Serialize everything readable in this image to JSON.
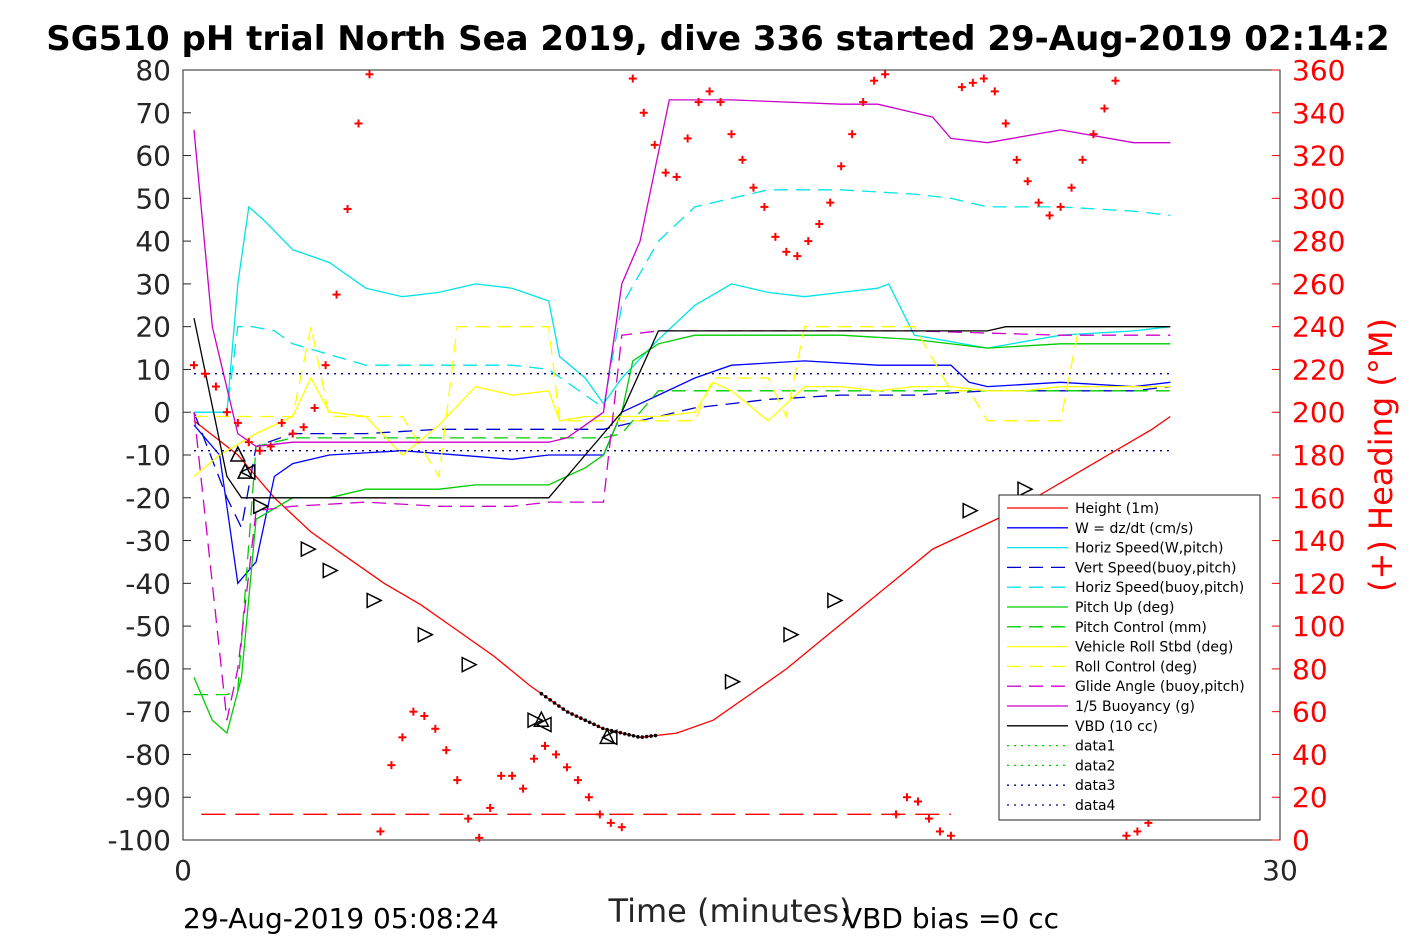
{
  "chart_data": {
    "type": "line",
    "title": "SG510 pH trial North Sea 2019, dive 336 started 29-Aug-2019 02:14:2",
    "xlabel": "Time (minutes)",
    "ylabel": "",
    "ylabel_right": "(+) Heading (°M)",
    "xlim": [
      0,
      30
    ],
    "ylim": [
      -100,
      80
    ],
    "ylim_right": [
      0,
      360
    ],
    "x_ticks": [
      "0",
      "30"
    ],
    "y_ticks": [
      "80",
      "70",
      "60",
      "50",
      "40",
      "30",
      "20",
      "10",
      "0",
      "-10",
      "-20",
      "-30",
      "-40",
      "-50",
      "-60",
      "-70",
      "-80",
      "-90",
      "-100"
    ],
    "y_ticks_right": [
      "360",
      "340",
      "320",
      "300",
      "280",
      "260",
      "240",
      "220",
      "200",
      "180",
      "160",
      "140",
      "120",
      "100",
      "80",
      "60",
      "40",
      "20",
      "0"
    ],
    "footer_left": "29-Aug-2019 05:08:24",
    "footer_right": "VBD bias =0 cc",
    "legend_position": "lower-right",
    "series": [
      {
        "name": "Height (1m)",
        "color": "#ff0000",
        "style": "solid",
        "axis": "left",
        "x": [
          0.3,
          1.5,
          2.5,
          3.5,
          4.5,
          5.5,
          6.5,
          7.5,
          8.5,
          9.5,
          10.5,
          11.5,
          12.5,
          13.5,
          14.5,
          15.5,
          16.5,
          17.5,
          18.5,
          19.5,
          20.5,
          21.5,
          22.5,
          23.5,
          24.5,
          25.5,
          26.5,
          27.0
        ],
        "y": [
          -2,
          -10,
          -20,
          -28,
          -34,
          -40,
          -45,
          -51,
          -57,
          -64,
          -70,
          -74,
          -76,
          -75,
          -72,
          -66,
          -60,
          -53,
          -46,
          -39,
          -32,
          -28,
          -24,
          -19,
          -14,
          -9,
          -4,
          -1
        ]
      },
      {
        "name": "W = dz/dt (cm/s)",
        "color": "#0000ff",
        "style": "solid",
        "axis": "left",
        "x": [
          0.3,
          1.0,
          1.5,
          2.0,
          2.5,
          3.0,
          4.0,
          6.0,
          9.0,
          10.0,
          11.5,
          12.0,
          13.0,
          14.0,
          15.0,
          17.0,
          19.0,
          21.0,
          21.5,
          22.0,
          24.0,
          26.0,
          27.0
        ],
        "y": [
          -3,
          -10,
          -40,
          -35,
          -15,
          -12,
          -10,
          -9,
          -11,
          -10,
          -10,
          0,
          4,
          8,
          11,
          12,
          11,
          11,
          7,
          6,
          7,
          6,
          7
        ]
      },
      {
        "name": "Horiz Speed(W,pitch)",
        "color": "#00e5e5",
        "style": "solid",
        "axis": "left",
        "x": [
          0.3,
          1.2,
          1.5,
          1.8,
          2.2,
          3.0,
          4.0,
          5.0,
          6.0,
          7.0,
          8.0,
          9.0,
          10.0,
          10.3,
          11.0,
          11.5,
          12.0,
          13.0,
          14.0,
          15.0,
          16.0,
          17.0,
          18.0,
          19.0,
          19.3,
          20.0,
          22.0,
          24.0,
          26.0,
          27.0
        ],
        "y": [
          0,
          0,
          30,
          48,
          45,
          38,
          35,
          29,
          27,
          28,
          30,
          29,
          26,
          13,
          8,
          2,
          8,
          17,
          25,
          30,
          28,
          27,
          28,
          29,
          30,
          18,
          15,
          18,
          19,
          20
        ]
      },
      {
        "name": "Vert Speed(buoy,pitch)",
        "color": "#0000cc",
        "style": "dashed",
        "axis": "left",
        "x": [
          0.3,
          1.2,
          1.6,
          2.0,
          3.0,
          5.0,
          7.0,
          9.0,
          10.0,
          11.5,
          12.0,
          13.0,
          14.0,
          16.0,
          18.0,
          20.0,
          22.0,
          24.0,
          26.0,
          27.0
        ],
        "y": [
          0,
          -20,
          -27,
          -8,
          -5,
          -5,
          -4,
          -4,
          -4,
          -4,
          -3,
          -1,
          1,
          3,
          4,
          4,
          5,
          5,
          5,
          6
        ]
      },
      {
        "name": "Horiz Speed(buoy,pitch)",
        "color": "#00e5e5",
        "style": "dashed",
        "axis": "left",
        "x": [
          0.3,
          1.2,
          1.5,
          1.9,
          2.5,
          3.0,
          5.0,
          7.0,
          9.0,
          10.0,
          11.0,
          11.5,
          12.0,
          13.0,
          14.0,
          16.0,
          18.0,
          20.0,
          21.0,
          22.0,
          24.0,
          26.0,
          27.0
        ],
        "y": [
          0,
          0,
          20,
          20,
          19,
          16,
          11,
          11,
          11,
          10,
          4,
          1,
          25,
          40,
          48,
          52,
          52,
          51,
          50,
          48,
          48,
          47,
          46
        ]
      },
      {
        "name": "Pitch Up (deg)",
        "color": "#00cc00",
        "style": "solid",
        "axis": "left",
        "x": [
          0.3,
          0.8,
          1.2,
          1.6,
          2.0,
          3.0,
          4.0,
          5.0,
          6.0,
          7.0,
          8.0,
          9.0,
          10.0,
          11.0,
          11.5,
          12.0,
          12.3,
          13.0,
          14.0,
          16.0,
          18.0,
          20.0,
          22.0,
          24.0,
          26.0,
          27.0
        ],
        "y": [
          -62,
          -72,
          -75,
          -62,
          -25,
          -20,
          -20,
          -18,
          -18,
          -18,
          -17,
          -17,
          -17,
          -13,
          -10,
          0,
          12,
          16,
          18,
          18,
          18,
          17,
          15,
          16,
          16,
          16
        ]
      },
      {
        "name": "Pitch Control (mm)",
        "color": "#00cc00",
        "style": "dashed",
        "axis": "left",
        "x": [
          0.3,
          1.2,
          1.5,
          2.0,
          3.0,
          6.0,
          9.0,
          10.0,
          11.5,
          12.0,
          13.0,
          14.0,
          16.0,
          18.0,
          20.0,
          22.0,
          24.0,
          26.0,
          27.0
        ],
        "y": [
          -66,
          -66,
          -65,
          -8,
          -6,
          -6,
          -6,
          -6,
          -6,
          -5,
          5,
          5,
          5,
          5,
          5,
          5,
          5,
          5,
          5
        ]
      },
      {
        "name": "Vehicle Roll Stbd (deg)",
        "color": "#ffff00",
        "style": "solid",
        "axis": "left",
        "x": [
          0.3,
          1.0,
          2.0,
          3.0,
          3.5,
          4.0,
          5.0,
          6.0,
          7.0,
          8.0,
          9.0,
          10.0,
          10.3,
          11.0,
          12.0,
          13.0,
          14.0,
          14.5,
          15.0,
          16.0,
          17.0,
          18.0,
          19.0,
          20.0,
          21.0,
          22.0,
          23.0,
          24.0,
          25.0,
          26.0,
          27.0
        ],
        "y": [
          -15,
          -10,
          -5,
          -1,
          8,
          0,
          -1,
          -10,
          -3,
          6,
          4,
          5,
          -2,
          -1,
          -1,
          -1,
          0,
          7,
          5,
          -2,
          6,
          6,
          5,
          6,
          6,
          5,
          5,
          6,
          6,
          6,
          6
        ]
      },
      {
        "name": "Roll Control (deg)",
        "color": "#ffff00",
        "style": "dashed",
        "axis": "left",
        "x": [
          0.3,
          1.0,
          2.0,
          3.0,
          3.5,
          4.0,
          6.0,
          7.0,
          7.5,
          8.5,
          9.5,
          10.0,
          10.3,
          12.0,
          14.0,
          14.5,
          16.0,
          16.5,
          17.0,
          20.0,
          21.0,
          21.5,
          22.0,
          23.0,
          24.0,
          24.5,
          26.0,
          27.0
        ],
        "y": [
          -1,
          -1,
          -1,
          -1,
          20,
          -1,
          -1,
          -15,
          20,
          20,
          20,
          20,
          -2,
          -2,
          -2,
          8,
          8,
          -1,
          20,
          20,
          5,
          5,
          -2,
          -2,
          -2,
          20,
          20,
          20
        ]
      },
      {
        "name": "Glide Angle (buoy,pitch)",
        "color": "#cc00cc",
        "style": "dashed",
        "axis": "left",
        "x": [
          0.3,
          1.2,
          1.5,
          2.0,
          3.0,
          5.0,
          7.0,
          9.0,
          10.0,
          11.5,
          12.0,
          13.0,
          16.0,
          20.0,
          24.0,
          27.0
        ],
        "y": [
          0,
          -72,
          -60,
          -23,
          -22,
          -21,
          -22,
          -22,
          -21,
          -21,
          18,
          19,
          19,
          19,
          18,
          18
        ]
      },
      {
        "name": "1/5 Buoyancy (g)",
        "color": "#cc00cc",
        "style": "solid",
        "axis": "left",
        "x": [
          0.3,
          0.8,
          1.5,
          2.0,
          3.0,
          5.0,
          7.0,
          9.0,
          10.0,
          10.5,
          11.5,
          12.0,
          12.5,
          13.3,
          15.0,
          18.0,
          19.0,
          20.0,
          20.5,
          21.0,
          22.0,
          24.0,
          26.0,
          27.0
        ],
        "y": [
          66,
          20,
          -5,
          -8,
          -7,
          -7,
          -7,
          -7,
          -7,
          -6,
          0,
          30,
          40,
          73,
          73,
          72,
          72,
          70,
          69,
          64,
          63,
          66,
          63,
          63
        ]
      },
      {
        "name": "VBD (10 cc)",
        "color": "#000000",
        "style": "solid",
        "axis": "left",
        "x": [
          0.3,
          1.2,
          1.6,
          2.0,
          3.0,
          6.0,
          9.0,
          10.0,
          11.0,
          12.0,
          13.0,
          15.0,
          17.0,
          20.0,
          22.0,
          22.5,
          24.0,
          26.0,
          27.0
        ],
        "y": [
          22,
          -15,
          -20,
          -20,
          -20,
          -20,
          -20,
          -20,
          -10,
          0,
          19,
          19,
          19,
          19,
          19,
          20,
          20,
          20,
          20
        ]
      },
      {
        "name": "data1",
        "color": "#00cc00",
        "style": "dotted",
        "axis": "left",
        "x": [],
        "y": []
      },
      {
        "name": "data2",
        "color": "#00cc00",
        "style": "dotted",
        "axis": "left",
        "x": [],
        "y": []
      },
      {
        "name": "data3",
        "color": "#000088",
        "style": "dotted",
        "axis": "left",
        "x": [
          0.3,
          27.0
        ],
        "y": [
          9,
          9
        ]
      },
      {
        "name": "data4",
        "color": "#000088",
        "style": "dotted",
        "axis": "left",
        "x": [
          0.3,
          27.0
        ],
        "y": [
          -9,
          -9
        ]
      },
      {
        "name": "",
        "color": "#ff0000",
        "style": "heading-markers",
        "axis": "right",
        "x": [
          0.3,
          0.6,
          0.9,
          1.2,
          1.5,
          1.8,
          2.1,
          2.4,
          2.7,
          3.0,
          3.3,
          3.6,
          3.9,
          4.2,
          4.5,
          4.8,
          5.1,
          5.4,
          5.7,
          6.0,
          6.3,
          6.6,
          6.9,
          7.2,
          7.5,
          7.8,
          8.1,
          8.4,
          8.7,
          9.0,
          9.3,
          9.6,
          9.9,
          10.2,
          10.5,
          10.8,
          11.1,
          11.4,
          11.7,
          12.0,
          12.3,
          12.6,
          12.9,
          13.2,
          13.5,
          13.8,
          14.1,
          14.4,
          14.7,
          15.0,
          15.3,
          15.6,
          15.9,
          16.2,
          16.5,
          16.8,
          17.1,
          17.4,
          17.7,
          18.0,
          18.3,
          18.6,
          18.9,
          19.2,
          19.5,
          19.8,
          20.1,
          20.4,
          20.7,
          21.0,
          21.3,
          21.6,
          21.9,
          22.2,
          22.5,
          22.8,
          23.1,
          23.4,
          23.7,
          24.0,
          24.3,
          24.6,
          24.9,
          25.2,
          25.5,
          25.8,
          26.1,
          26.4,
          26.7,
          27.0
        ],
        "y": [
          222,
          218,
          212,
          200,
          195,
          186,
          182,
          184,
          195,
          190,
          193,
          202,
          222,
          255,
          295,
          335,
          358,
          4,
          35,
          48,
          60,
          58,
          52,
          42,
          28,
          10,
          1,
          15,
          30,
          30,
          24,
          38,
          44,
          40,
          34,
          28,
          20,
          12,
          8,
          6,
          356,
          340,
          325,
          312,
          310,
          328,
          345,
          350,
          345,
          330,
          318,
          305,
          296,
          282,
          275,
          273,
          280,
          288,
          298,
          315,
          330,
          345,
          355,
          358,
          12,
          20,
          18,
          10,
          4,
          2,
          352,
          354,
          356,
          350,
          335,
          318,
          308,
          298,
          292,
          296,
          305,
          318,
          330,
          342,
          355,
          2,
          4,
          8,
          14,
          16
        ]
      },
      {
        "name": "",
        "color": "#ff0000",
        "style": "red-dashed",
        "axis": "right",
        "x": [
          0.5,
          21.0
        ],
        "y": [
          12,
          12
        ]
      }
    ],
    "triangle_markers": {
      "up": {
        "x": [
          1.5,
          1.7,
          9.8,
          11.6
        ],
        "y": [
          -10,
          -14,
          -72,
          -76
        ]
      },
      "right": {
        "x": [
          2.1,
          3.4,
          4.0,
          5.2,
          6.6,
          7.8,
          9.6,
          15.0,
          16.6,
          17.8,
          21.5,
          23.0
        ],
        "y": [
          -22,
          -32,
          -37,
          -44,
          -52,
          -59,
          -72,
          -63,
          -52,
          -44,
          -23,
          -18
        ]
      },
      "left": {
        "x": [
          1.8,
          9.9,
          11.7
        ],
        "y": [
          -14,
          -73,
          -76
        ]
      }
    }
  }
}
